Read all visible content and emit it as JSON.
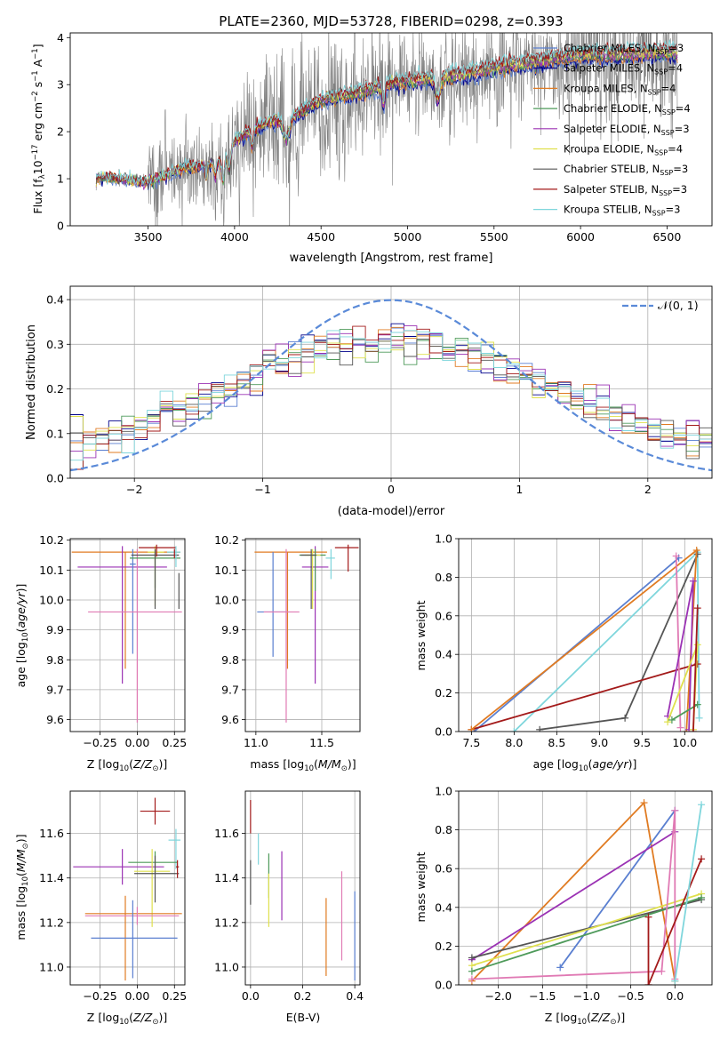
{
  "title": "PLATE=2360, MJD=53728, FIBERID=0298, z=0.393",
  "colors": {
    "chabrier_miles": "#5a7fd0",
    "salpeter_miles": "#00008b",
    "kroupa_miles": "#e07b22",
    "chabrier_elodie": "#4e9a5a",
    "salpeter_elodie": "#9b32b4",
    "kroupa_elodie": "#dfe04d",
    "chabrier_stelib": "#555555",
    "salpeter_stelib": "#a31a1a",
    "kroupa_stelib": "#7fd6dc",
    "pink": "#e07ab4",
    "data": "#808080",
    "normal": "#5a8ad8"
  },
  "spectrum": {
    "ylabel": "Flux [f$_\\lambda$10$^{-17}$ erg cm$^{-2}$ s$^{-1}$ A$^{-1}$]",
    "xlabel": "wavelength [Angstrom, rest frame]",
    "legend": [
      "Chabrier MILES, N$_{SSP}$=3",
      "Salpeter MILES, N$_{SSP}$=4",
      "Kroupa MILES, N$_{SSP}$=4",
      "Chabrier ELODIE, N$_{SSP}$=4",
      "Salpeter ELODIE, N$_{SSP}$=3",
      "Kroupa ELODIE, N$_{SSP}$=4",
      "Chabrier STELIB, N$_{SSP}$=3",
      "Salpeter STELIB, N$_{SSP}$=3",
      "Kroupa STELIB, N$_{SSP}$=3"
    ],
    "legend_display": [
      [
        "Chabrier MILES, N",
        "SSP",
        "=3"
      ],
      [
        "Salpeter MILES, N",
        "SSP",
        "=4"
      ],
      [
        "Kroupa MILES, N",
        "SSP",
        "=4"
      ],
      [
        "Chabrier ELODIE, N",
        "SSP",
        "=4"
      ],
      [
        "Salpeter ELODIE, N",
        "SSP",
        "=3"
      ],
      [
        "Kroupa ELODIE, N",
        "SSP",
        "=4"
      ],
      [
        "Chabrier STELIB, N",
        "SSP",
        "=3"
      ],
      [
        "Salpeter STELIB, N",
        "SSP",
        "=3"
      ],
      [
        "Kroupa STELIB, N",
        "SSP",
        "=3"
      ]
    ],
    "legend_colors": [
      "#5a7fd0",
      "#00008b",
      "#e07b22",
      "#4e9a5a",
      "#9b32b4",
      "#dfe04d",
      "#555555",
      "#a31a1a",
      "#7fd6dc"
    ],
    "xlim": [
      3050,
      6760
    ],
    "ylim": [
      0,
      4.1
    ],
    "xticks": [
      3500,
      4000,
      4500,
      5000,
      5500,
      6000,
      6500
    ],
    "yticks": [
      0,
      1,
      2,
      3,
      4
    ],
    "continuum": [
      [
        3200,
        1.0
      ],
      [
        3300,
        1.0
      ],
      [
        3400,
        0.95
      ],
      [
        3500,
        0.9
      ],
      [
        3600,
        1.05
      ],
      [
        3700,
        1.2
      ],
      [
        3800,
        1.25
      ],
      [
        3900,
        1.3
      ],
      [
        4000,
        1.75
      ],
      [
        4100,
        2.0
      ],
      [
        4200,
        2.15
      ],
      [
        4300,
        2.2
      ],
      [
        4400,
        2.4
      ],
      [
        4500,
        2.6
      ],
      [
        4600,
        2.7
      ],
      [
        4700,
        2.75
      ],
      [
        4800,
        2.85
      ],
      [
        4900,
        2.95
      ],
      [
        5000,
        3.0
      ],
      [
        5100,
        3.05
      ],
      [
        5200,
        3.1
      ],
      [
        5300,
        3.15
      ],
      [
        5400,
        3.2
      ],
      [
        5500,
        3.3
      ],
      [
        5600,
        3.35
      ],
      [
        5700,
        3.4
      ],
      [
        5800,
        3.45
      ],
      [
        5900,
        3.5
      ],
      [
        6000,
        3.55
      ],
      [
        6200,
        3.55
      ],
      [
        6400,
        3.6
      ],
      [
        6560,
        3.6
      ]
    ]
  },
  "residuals": {
    "xlabel": "(data-model)/error",
    "ylabel": "Normed distribution",
    "legend": "$\\mathcal{N}(0,1)$",
    "legend_display": "𝒩(0, 1)",
    "xlim": [
      -2.5,
      2.5
    ],
    "ylim": [
      0,
      0.43
    ],
    "xticks": [
      -2,
      -1,
      0,
      1,
      2
    ],
    "yticks": [
      0.0,
      0.1,
      0.2,
      0.3,
      0.4
    ],
    "bin_width": 0.1
  },
  "panels": {
    "age_z": {
      "xlabel": "Z [log$_{10}$($Z/Z_\\odot$)]",
      "ylabel": "age  [log$_{10}$($age/yr$)]",
      "xlim": [
        -0.45,
        0.32
      ],
      "ylim": [
        9.56,
        10.205
      ],
      "xticks": [
        -0.25,
        0.0,
        0.25
      ],
      "yticks": [
        9.6,
        9.7,
        9.8,
        9.9,
        10.0,
        10.1,
        10.2
      ]
    },
    "age_mass": {
      "xlabel": "mass [log$_{10}$($M/M_\\odot$)]",
      "xlim": [
        10.92,
        11.79
      ],
      "ylim": [
        9.56,
        10.205
      ],
      "xticks": [
        11.0,
        11.5
      ],
      "yticks": [
        9.6,
        9.7,
        9.8,
        9.9,
        10.0,
        10.1,
        10.2
      ]
    },
    "mw_age": {
      "xlabel": "age  [log$_{10}$($age/yr$)]",
      "ylabel": "mass weight",
      "xlim": [
        7.35,
        10.32
      ],
      "ylim": [
        0,
        1.0
      ],
      "xticks": [
        7.5,
        8.0,
        8.5,
        9.0,
        9.5,
        10.0
      ],
      "yticks": [
        0.0,
        0.2,
        0.4,
        0.6,
        0.8,
        1.0
      ]
    },
    "mass_z": {
      "xlabel": "Z [log$_{10}$($Z/Z_\\odot$)]",
      "ylabel": "mass [log$_{10}$($M/M_\\odot$)]",
      "xlim": [
        -0.45,
        0.32
      ],
      "ylim": [
        10.92,
        11.79
      ],
      "xticks": [
        -0.25,
        0.0,
        0.25
      ],
      "yticks": [
        11.0,
        11.2,
        11.4,
        11.6
      ]
    },
    "mass_ebv": {
      "xlabel": "E(B-V)",
      "xlim": [
        -0.02,
        0.42
      ],
      "ylim": [
        10.92,
        11.79
      ],
      "xticks": [
        0.0,
        0.2,
        0.4
      ],
      "yticks": [
        11.0,
        11.2,
        11.4,
        11.6
      ]
    },
    "mw_z": {
      "xlabel": "Z [log$_{10}$($Z/Z_\\odot$)]",
      "ylabel": "mass weight",
      "xlim": [
        -2.45,
        0.42
      ],
      "ylim": [
        0,
        1.0
      ],
      "xticks": [
        -2.0,
        -1.5,
        -1.0,
        -0.5,
        0.0
      ],
      "yticks": [
        0.0,
        0.2,
        0.4,
        0.6,
        0.8,
        1.0
      ]
    }
  },
  "axis_display": {
    "age": [
      "age  [log",
      "10",
      "(",
      "age/yr",
      ")]"
    ],
    "z": [
      "Z [log",
      "10",
      "(",
      "Z/Z",
      "⊙",
      ")]"
    ],
    "mass": [
      "mass [log",
      "10",
      "(",
      "M/M",
      "⊙",
      ")]"
    ]
  },
  "chart_data": [
    {
      "type": "line",
      "title": "PLATE=2360, MJD=53728, FIBERID=0298, z=0.393",
      "xlabel": "wavelength [Angstrom, rest frame]",
      "ylabel": "Flux [f$_\\lambda$10$^{-17}$ erg cm$^{-2}$ s$^{-1}$ A$^{-1}$]",
      "x_range": [
        3200,
        6560
      ],
      "note_series": [
        "data (grey noisy spectrum)",
        "9 SSP model fits"
      ]
    },
    {
      "type": "bar",
      "xlabel": "(data-model)/error",
      "ylabel": "Normed distribution",
      "series": [
        {
          "name": "𝒩(0,1)",
          "type": "gaussian",
          "mean": 0,
          "sigma": 1
        }
      ]
    },
    {
      "type": "scatter",
      "name": "age vs Z (error bars)",
      "points": [
        {
          "c": "chabrier_miles",
          "z": -0.03,
          "zerr": 0.03,
          "age": 10.12,
          "age_err": [
            0.0,
            0.06
          ]
        },
        {
          "c": "kroupa_miles",
          "z": -0.08,
          "zerr": 0.4,
          "age": 10.16,
          "age_err": [
            0.39,
            0.0
          ]
        },
        {
          "c": "salpeter_elodie",
          "z": -0.1,
          "zerr": 0.3,
          "age": 10.11,
          "age_err": [
            0.39,
            0.07
          ]
        },
        {
          "c": "chabrier_elodie",
          "z": 0.1,
          "zerr": 0.18,
          "age": 10.14,
          "age_err": [
            0.1,
            0.02
          ]
        },
        {
          "c": "kroupa_elodie",
          "z": 0.11,
          "zerr": 0.07,
          "age": 10.15,
          "age_err": [
            0.18,
            0.02
          ]
        },
        {
          "c": "chabrier_stelib",
          "z": 0.1,
          "zerr": 0.17,
          "age": 10.15,
          "age_err": [
            0.18,
            0.02
          ]
        },
        {
          "c": "salpeter_stelib",
          "z": 0.12,
          "zerr": 0.13,
          "age": 10.17,
          "age_err": [
            0.03,
            0.01
          ]
        },
        {
          "c": "kroupa_stelib",
          "z": 0.25,
          "zerr": 0.05,
          "age": 10.16,
          "age_err": [
            0.05,
            0.02
          ]
        },
        {
          "c": "pink",
          "z": 0.0,
          "zerr": 0.3,
          "age": 9.96,
          "age_err": [
            0.36,
            0.2
          ]
        }
      ]
    },
    {
      "type": "scatter",
      "name": "mass weight vs age",
      "series": [
        {
          "c": "chabrier_miles",
          "points": [
            [
              7.55,
              0.01
            ],
            [
              9.93,
              0.9
            ]
          ]
        },
        {
          "c": "kroupa_stelib",
          "points": [
            [
              8.0,
              0.01
            ],
            [
              10.15,
              0.93
            ],
            [
              10.17,
              0.07
            ]
          ]
        },
        {
          "c": "chabrier_stelib",
          "points": [
            [
              8.3,
              0.01
            ],
            [
              9.3,
              0.07
            ],
            [
              10.15,
              0.92
            ]
          ]
        },
        {
          "c": "salpeter_stelib",
          "points": [
            [
              7.5,
              0.01
            ],
            [
              10.15,
              0.35
            ]
          ]
        },
        {
          "c": "kroupa_miles",
          "points": [
            [
              7.5,
              0.01
            ],
            [
              10.14,
              0.94
            ]
          ]
        },
        {
          "c": "pink",
          "points": [
            [
              9.9,
              0.91
            ],
            [
              9.95,
              0.02
            ]
          ]
        }
      ]
    },
    {
      "type": "scatter",
      "name": "mass weight vs Z",
      "series": [
        {
          "c": "kroupa_miles",
          "points": [
            [
              -2.3,
              0.02
            ],
            [
              -0.35,
              0.94
            ],
            [
              0.0,
              0.02
            ]
          ]
        },
        {
          "c": "chabrier_miles",
          "points": [
            [
              -1.3,
              0.09
            ],
            [
              0.0,
              0.9
            ]
          ]
        },
        {
          "c": "salpeter_elodie",
          "points": [
            [
              -2.3,
              0.13
            ],
            [
              0.0,
              0.79
            ]
          ]
        },
        {
          "c": "pink",
          "points": [
            [
              -2.3,
              0.03
            ],
            [
              -0.15,
              0.07
            ],
            [
              0.0,
              0.9
            ]
          ]
        },
        {
          "c": "salpeter_stelib",
          "points": [
            [
              -0.3,
              0.0
            ],
            [
              0.3,
              0.65
            ]
          ]
        },
        {
          "c": "kroupa_stelib",
          "points": [
            [
              0.3,
              0.93
            ],
            [
              0.0,
              0.02
            ]
          ]
        }
      ]
    }
  ]
}
